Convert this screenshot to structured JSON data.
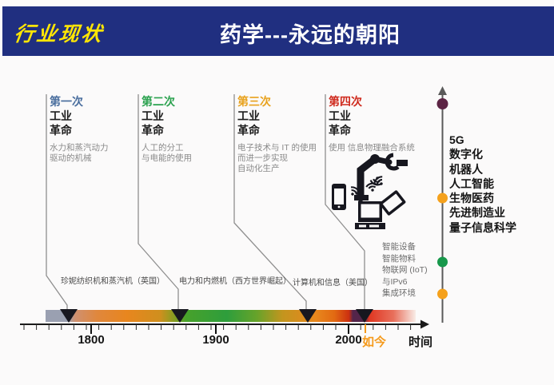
{
  "header": {
    "corner_label": "行业现状",
    "title": "药学---永远的朝阳",
    "bg_color": "#202f80",
    "corner_label_color": "#ffe604",
    "title_color": "#ffffff"
  },
  "revolutions": [
    {
      "order": "第一次",
      "industry": "工业",
      "revolution": "革命",
      "accent_color": "#4a6e9e",
      "desc": [
        "水力和蒸汽动力",
        "驱动的机械"
      ],
      "milestone": "珍妮纺织机和蒸汽机（英国）"
    },
    {
      "order": "第二次",
      "industry": "工业",
      "revolution": "革命",
      "accent_color": "#2ba24f",
      "desc": [
        "人工的分工",
        "与电能的使用"
      ],
      "milestone": "电力和内燃机（西方世界崛起）"
    },
    {
      "order": "第三次",
      "industry": "工业",
      "revolution": "革命",
      "accent_color": "#e8a21d",
      "desc": [
        "电子技术与 IT 的使用",
        "而进一步实现",
        "自动化生产"
      ],
      "milestone": "计算机和信息（美国）"
    },
    {
      "order": "第四次",
      "industry": "工业",
      "revolution": "革命",
      "accent_color": "#cf2a1d",
      "desc": [
        "使用 信息物理融合系统"
      ],
      "milestone_lines": [
        "智能设备",
        "智能物料",
        "物联网 (IoT)",
        "与IPv6",
        "集成环境"
      ]
    }
  ],
  "right_column": {
    "items": [
      "5G",
      "数字化",
      "机器人",
      "人工智能",
      "生物医药",
      "先进制造业",
      "量子信息科学"
    ],
    "dot_colors": [
      "#5c2444",
      "#f5a11c",
      "#17984b",
      "#f5a11c"
    ]
  },
  "timeline": {
    "years": [
      "1800",
      "1900",
      "2000"
    ],
    "now_label": "如今",
    "now_color": "#f59a1c",
    "axis_label": "时间"
  },
  "icons": {
    "industry4_cluster": [
      "robot-arm-icon",
      "smartphone-icon",
      "laptop-icon",
      "tablet-icon",
      "wifi-icon"
    ],
    "timeline_markers": "black downward triangles",
    "right_axis": "vertical line with up-arrow and colored dots"
  }
}
